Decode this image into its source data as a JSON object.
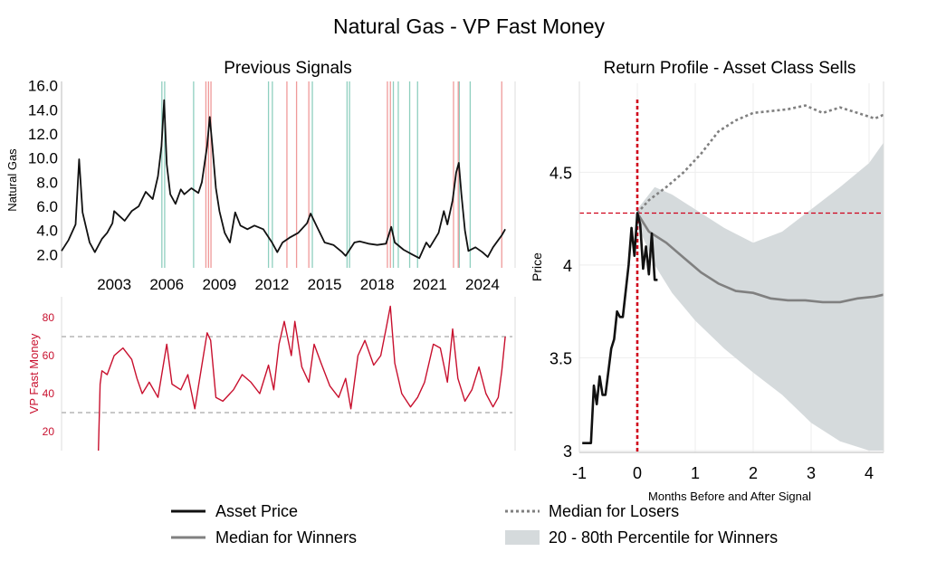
{
  "title": "Natural Gas - VP Fast Money",
  "colors": {
    "price": "#111111",
    "indicator": "#c8102e",
    "buy_signal": "#8fcfbf",
    "sell_signal": "#ef9a9a",
    "threshold": "#c8c8c8",
    "median": "#808080",
    "band": "#d5dadc",
    "marker": "#d0021b"
  },
  "legend": {
    "asset_price": "Asset Price",
    "median_winners": "Median for Winners",
    "median_losers": "Median for Losers",
    "band": "20 - 80th Percentile for Winners"
  },
  "chart_data": [
    {
      "id": "price",
      "type": "line",
      "title": "Previous Signals",
      "ylabel": "Natural Gas",
      "xlim": [
        2000.0,
        2025.5
      ],
      "ylim": [
        1.2,
        16.2
      ],
      "yticks": [
        "16.0",
        "14.0",
        "12.0",
        "10.0",
        "8.0",
        "6.0",
        "4.0",
        "2.0"
      ],
      "ytick_values": [
        16,
        14,
        12,
        10,
        8,
        6,
        4,
        2
      ],
      "xticks": [
        "2003",
        "2006",
        "2009",
        "2012",
        "2015",
        "2018",
        "2021",
        "2024"
      ],
      "xtick_values": [
        2003,
        2006,
        2009,
        2012,
        2015,
        2018,
        2021,
        2024
      ],
      "series": [
        {
          "x": [
            2000.0,
            2000.4,
            2000.8,
            2001.0,
            2001.2,
            2001.6,
            2001.9,
            2002.3,
            2002.6,
            2002.9,
            2003.0,
            2003.3,
            2003.6,
            2004.0,
            2004.4,
            2004.8,
            2005.2,
            2005.5,
            2005.7,
            2005.85,
            2006.0,
            2006.2,
            2006.5,
            2006.8,
            2007.0,
            2007.4,
            2007.8,
            2008.0,
            2008.3,
            2008.45,
            2008.6,
            2008.8,
            2009.0,
            2009.3,
            2009.6,
            2009.9,
            2010.2,
            2010.6,
            2011.0,
            2011.5,
            2012.0,
            2012.3,
            2012.6,
            2013.0,
            2013.5,
            2014.0,
            2014.2,
            2014.6,
            2015.0,
            2015.5,
            2016.0,
            2016.2,
            2016.7,
            2017.0,
            2017.5,
            2018.0,
            2018.5,
            2018.8,
            2019.0,
            2019.5,
            2020.0,
            2020.4,
            2020.8,
            2021.0,
            2021.5,
            2021.8,
            2022.0,
            2022.3,
            2022.5,
            2022.65,
            2022.8,
            2023.0,
            2023.2,
            2023.6,
            2024.0,
            2024.3,
            2024.6,
            2024.9,
            2025.1,
            2025.3
          ],
          "y": [
            2.3,
            3.2,
            4.5,
            9.9,
            5.5,
            3.0,
            2.2,
            3.3,
            3.8,
            4.6,
            5.6,
            5.2,
            4.8,
            5.6,
            6.0,
            7.2,
            6.6,
            8.5,
            11.0,
            14.8,
            9.5,
            7.0,
            6.2,
            7.4,
            7.0,
            7.5,
            7.1,
            8.0,
            11.0,
            13.4,
            11.0,
            7.5,
            5.6,
            3.8,
            3.0,
            5.5,
            4.4,
            4.1,
            4.4,
            4.1,
            3.0,
            2.2,
            3.0,
            3.4,
            3.8,
            4.6,
            5.4,
            4.2,
            3.0,
            2.8,
            2.2,
            1.9,
            3.0,
            3.1,
            2.9,
            2.8,
            2.9,
            4.3,
            3.0,
            2.4,
            2.0,
            1.7,
            3.0,
            2.6,
            3.8,
            5.6,
            4.5,
            6.5,
            8.8,
            9.6,
            7.0,
            4.0,
            2.3,
            2.6,
            2.2,
            1.8,
            2.6,
            3.2,
            3.6,
            4.1
          ]
        }
      ],
      "buy_signals": [
        2005.72,
        2005.88,
        2007.53,
        2011.8,
        2012.02,
        2014.3,
        2016.28,
        2016.42,
        2018.92,
        2019.2,
        2019.85,
        2020.3,
        2022.68,
        2023.3
      ],
      "sell_signals": [
        2008.23,
        2008.38,
        2008.52,
        2012.85,
        2013.4,
        2014.1,
        2018.58,
        2018.75,
        2022.35,
        2022.62,
        2025.1
      ]
    },
    {
      "id": "indicator",
      "type": "line",
      "ylabel": "VP Fast Money",
      "xlim": [
        2000.0,
        2025.5
      ],
      "ylim": [
        10,
        90
      ],
      "yticks": [
        "80",
        "60",
        "40",
        "20"
      ],
      "ytick_values": [
        80,
        60,
        40,
        20
      ],
      "thresholds": [
        70,
        30
      ],
      "series": [
        {
          "x": [
            2002.1,
            2002.2,
            2002.3,
            2002.6,
            2003.0,
            2003.5,
            2004.0,
            2004.3,
            2004.6,
            2005.0,
            2005.5,
            2006.0,
            2006.3,
            2006.8,
            2007.2,
            2007.6,
            2008.0,
            2008.3,
            2008.5,
            2008.8,
            2009.2,
            2009.8,
            2010.3,
            2010.8,
            2011.3,
            2011.8,
            2012.1,
            2012.4,
            2012.7,
            2013.1,
            2013.3,
            2013.7,
            2014.1,
            2014.4,
            2014.8,
            2015.3,
            2015.8,
            2016.2,
            2016.5,
            2016.9,
            2017.3,
            2017.8,
            2018.2,
            2018.5,
            2018.75,
            2019.0,
            2019.4,
            2019.9,
            2020.3,
            2020.7,
            2021.2,
            2021.6,
            2022.0,
            2022.3,
            2022.6,
            2023.0,
            2023.4,
            2023.8,
            2024.2,
            2024.6,
            2024.9,
            2025.1,
            2025.3
          ],
          "y": [
            10,
            45,
            52,
            50,
            60,
            64,
            58,
            48,
            40,
            46,
            38,
            66,
            45,
            42,
            50,
            32,
            55,
            72,
            68,
            38,
            36,
            42,
            50,
            46,
            40,
            55,
            42,
            66,
            78,
            60,
            78,
            54,
            46,
            66,
            56,
            44,
            38,
            48,
            32,
            60,
            68,
            55,
            60,
            74,
            86,
            56,
            40,
            33,
            38,
            46,
            66,
            64,
            46,
            74,
            48,
            36,
            42,
            54,
            40,
            33,
            38,
            52,
            70
          ]
        }
      ]
    },
    {
      "id": "return-profile",
      "type": "line",
      "title": "Return Profile - Asset Class Sells",
      "xlabel": "Months Before and After Signal",
      "ylabel": "Price",
      "xlim": [
        -1,
        4.25
      ],
      "ylim": [
        2.99,
        4.98
      ],
      "xticks": [
        "-1",
        "0",
        "1",
        "2",
        "3",
        "4"
      ],
      "xtick_values": [
        -1,
        0,
        1,
        2,
        3,
        4
      ],
      "yticks": [
        "4.5",
        "4",
        "3.5",
        "3"
      ],
      "ytick_values": [
        4.5,
        4,
        3.5,
        3
      ],
      "reference_x": 0,
      "reference_y": 4.28,
      "series": [
        {
          "role": "asset_price",
          "x": [
            -0.95,
            -0.8,
            -0.75,
            -0.7,
            -0.65,
            -0.6,
            -0.55,
            -0.45,
            -0.4,
            -0.35,
            -0.3,
            -0.25,
            -0.15,
            -0.1,
            -0.05,
            0.0,
            0.05,
            0.1,
            0.15,
            0.2,
            0.25,
            0.3,
            0.35
          ],
          "y": [
            3.04,
            3.04,
            3.35,
            3.25,
            3.4,
            3.3,
            3.3,
            3.55,
            3.6,
            3.75,
            3.72,
            3.72,
            4.0,
            4.2,
            4.05,
            4.28,
            4.22,
            3.98,
            4.1,
            3.95,
            4.17,
            3.92,
            3.92
          ]
        },
        {
          "role": "median_winners",
          "x": [
            0.0,
            0.2,
            0.5,
            0.8,
            1.1,
            1.4,
            1.7,
            2.0,
            2.3,
            2.6,
            2.9,
            3.2,
            3.5,
            3.8,
            4.1,
            4.25
          ],
          "y": [
            4.28,
            4.18,
            4.12,
            4.04,
            3.96,
            3.9,
            3.86,
            3.85,
            3.82,
            3.81,
            3.81,
            3.8,
            3.8,
            3.82,
            3.83,
            3.84
          ]
        },
        {
          "role": "median_losers",
          "x": [
            0.0,
            0.2,
            0.5,
            0.8,
            1.1,
            1.4,
            1.7,
            2.0,
            2.3,
            2.6,
            2.9,
            3.2,
            3.5,
            3.8,
            4.1,
            4.25
          ],
          "y": [
            4.28,
            4.35,
            4.42,
            4.5,
            4.6,
            4.72,
            4.78,
            4.82,
            4.83,
            4.84,
            4.86,
            4.82,
            4.85,
            4.82,
            4.79,
            4.81
          ]
        }
      ],
      "band": {
        "x": [
          0.0,
          0.3,
          0.6,
          1.0,
          1.5,
          2.0,
          2.5,
          3.0,
          3.5,
          4.0,
          4.25
        ],
        "upper": [
          4.3,
          4.42,
          4.38,
          4.3,
          4.2,
          4.12,
          4.18,
          4.3,
          4.42,
          4.55,
          4.66
        ],
        "lower": [
          4.22,
          4.0,
          3.85,
          3.7,
          3.55,
          3.42,
          3.3,
          3.15,
          3.05,
          3.0,
          3.0
        ]
      }
    }
  ]
}
